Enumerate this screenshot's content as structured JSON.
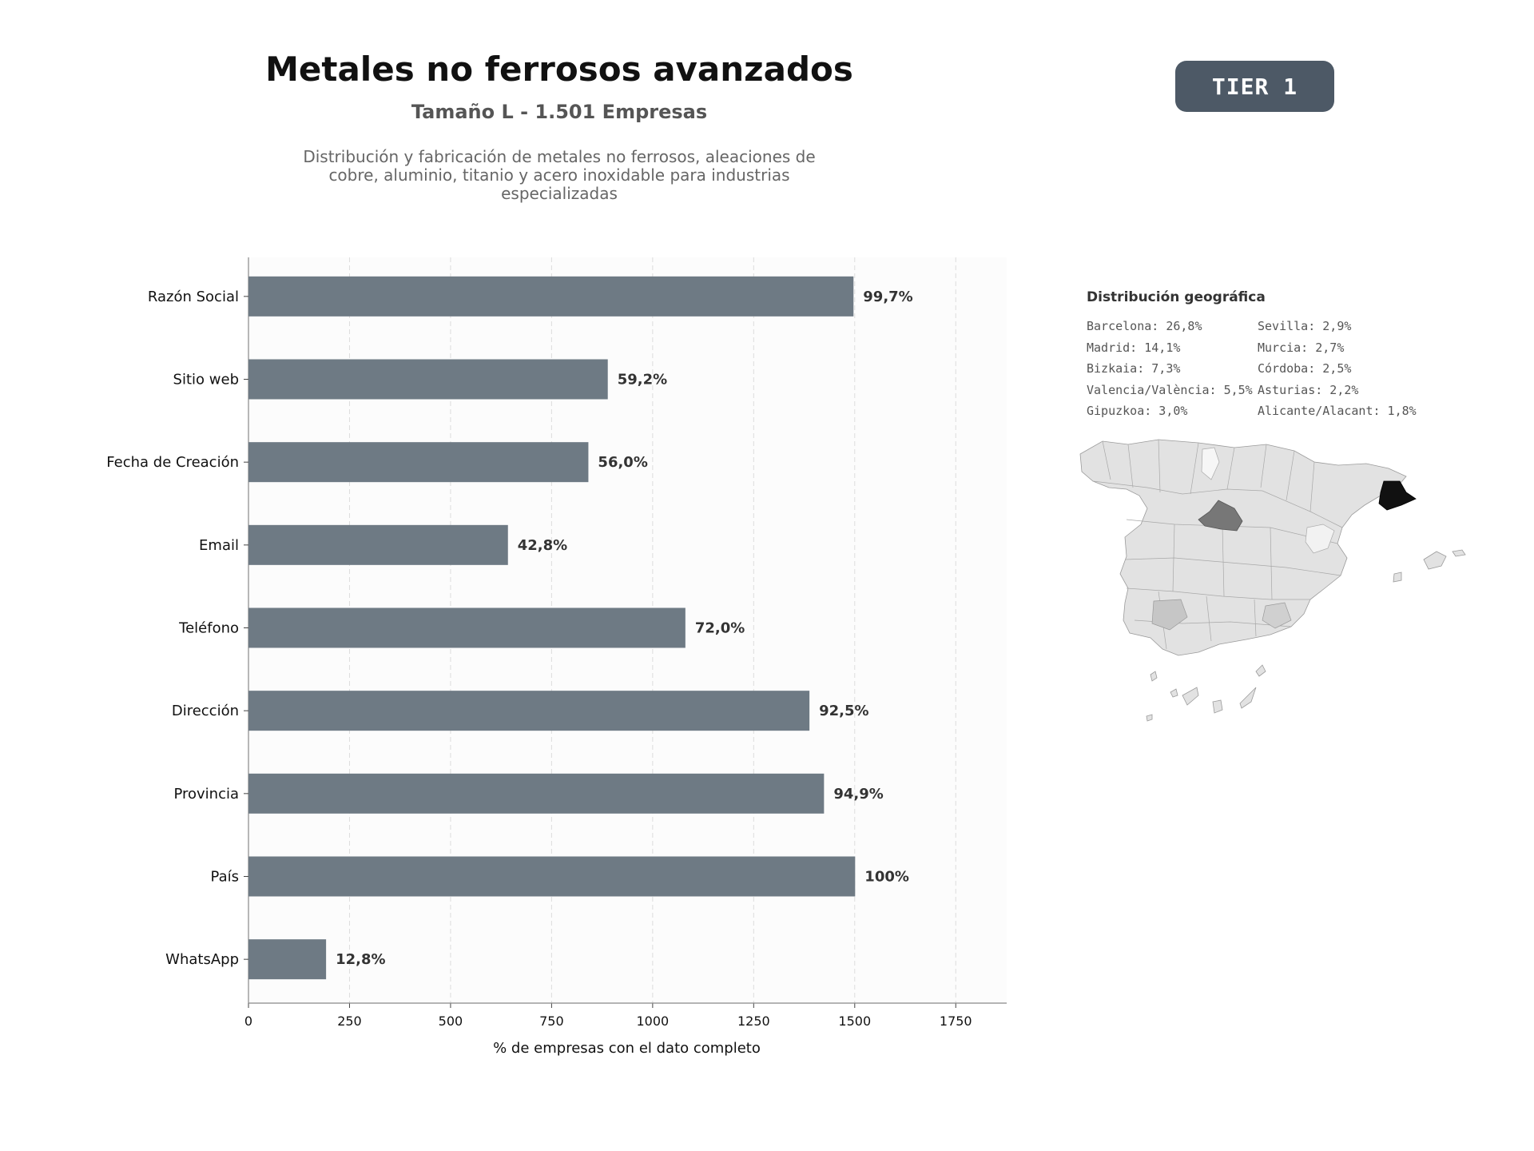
{
  "header": {
    "title": "Metales no ferrosos avanzados",
    "subtitle": "Tamaño L - 1.501 Empresas",
    "description": "Distribución y fabricación de metales no ferrosos, aleaciones de cobre, aluminio, titanio y acero inoxidable para industrias especializadas",
    "badge": "TIER 1",
    "badge_color": "#4d5966"
  },
  "chart_data": {
    "type": "bar",
    "orientation": "horizontal",
    "categories": [
      "Razón Social",
      "Sitio web",
      "Fecha de Creación",
      "Email",
      "Teléfono",
      "Dirección",
      "Provincia",
      "País",
      "WhatsApp"
    ],
    "values": [
      1497,
      889,
      841,
      642,
      1081,
      1388,
      1424,
      1501,
      192
    ],
    "data_labels": [
      "99,7%",
      "59,2%",
      "56,0%",
      "42,8%",
      "72,0%",
      "92,5%",
      "94,9%",
      "100%",
      "12,8%"
    ],
    "xlabel": "% de empresas con el dato completo",
    "xticks": [
      0,
      250,
      500,
      750,
      1000,
      1250,
      1500,
      1750
    ],
    "xlim": [
      0,
      1876
    ],
    "grid": "vertical dashed",
    "bar_color": "#6e7a84"
  },
  "geo": {
    "title": "Distribución geográfica",
    "col1": [
      "Barcelona: 26,8%",
      "Madrid: 14,1%",
      "Bizkaia: 7,3%",
      "Valencia/València: 5,5%",
      "Gipuzkoa: 3,0%"
    ],
    "col2": [
      "Sevilla: 2,9%",
      "Murcia: 2,7%",
      "Córdoba: 2,5%",
      "Asturias: 2,2%",
      "Alicante/Alacant: 1,8%"
    ],
    "highlight_colors": [
      "#111111",
      "#777777",
      "#dddddd"
    ]
  }
}
